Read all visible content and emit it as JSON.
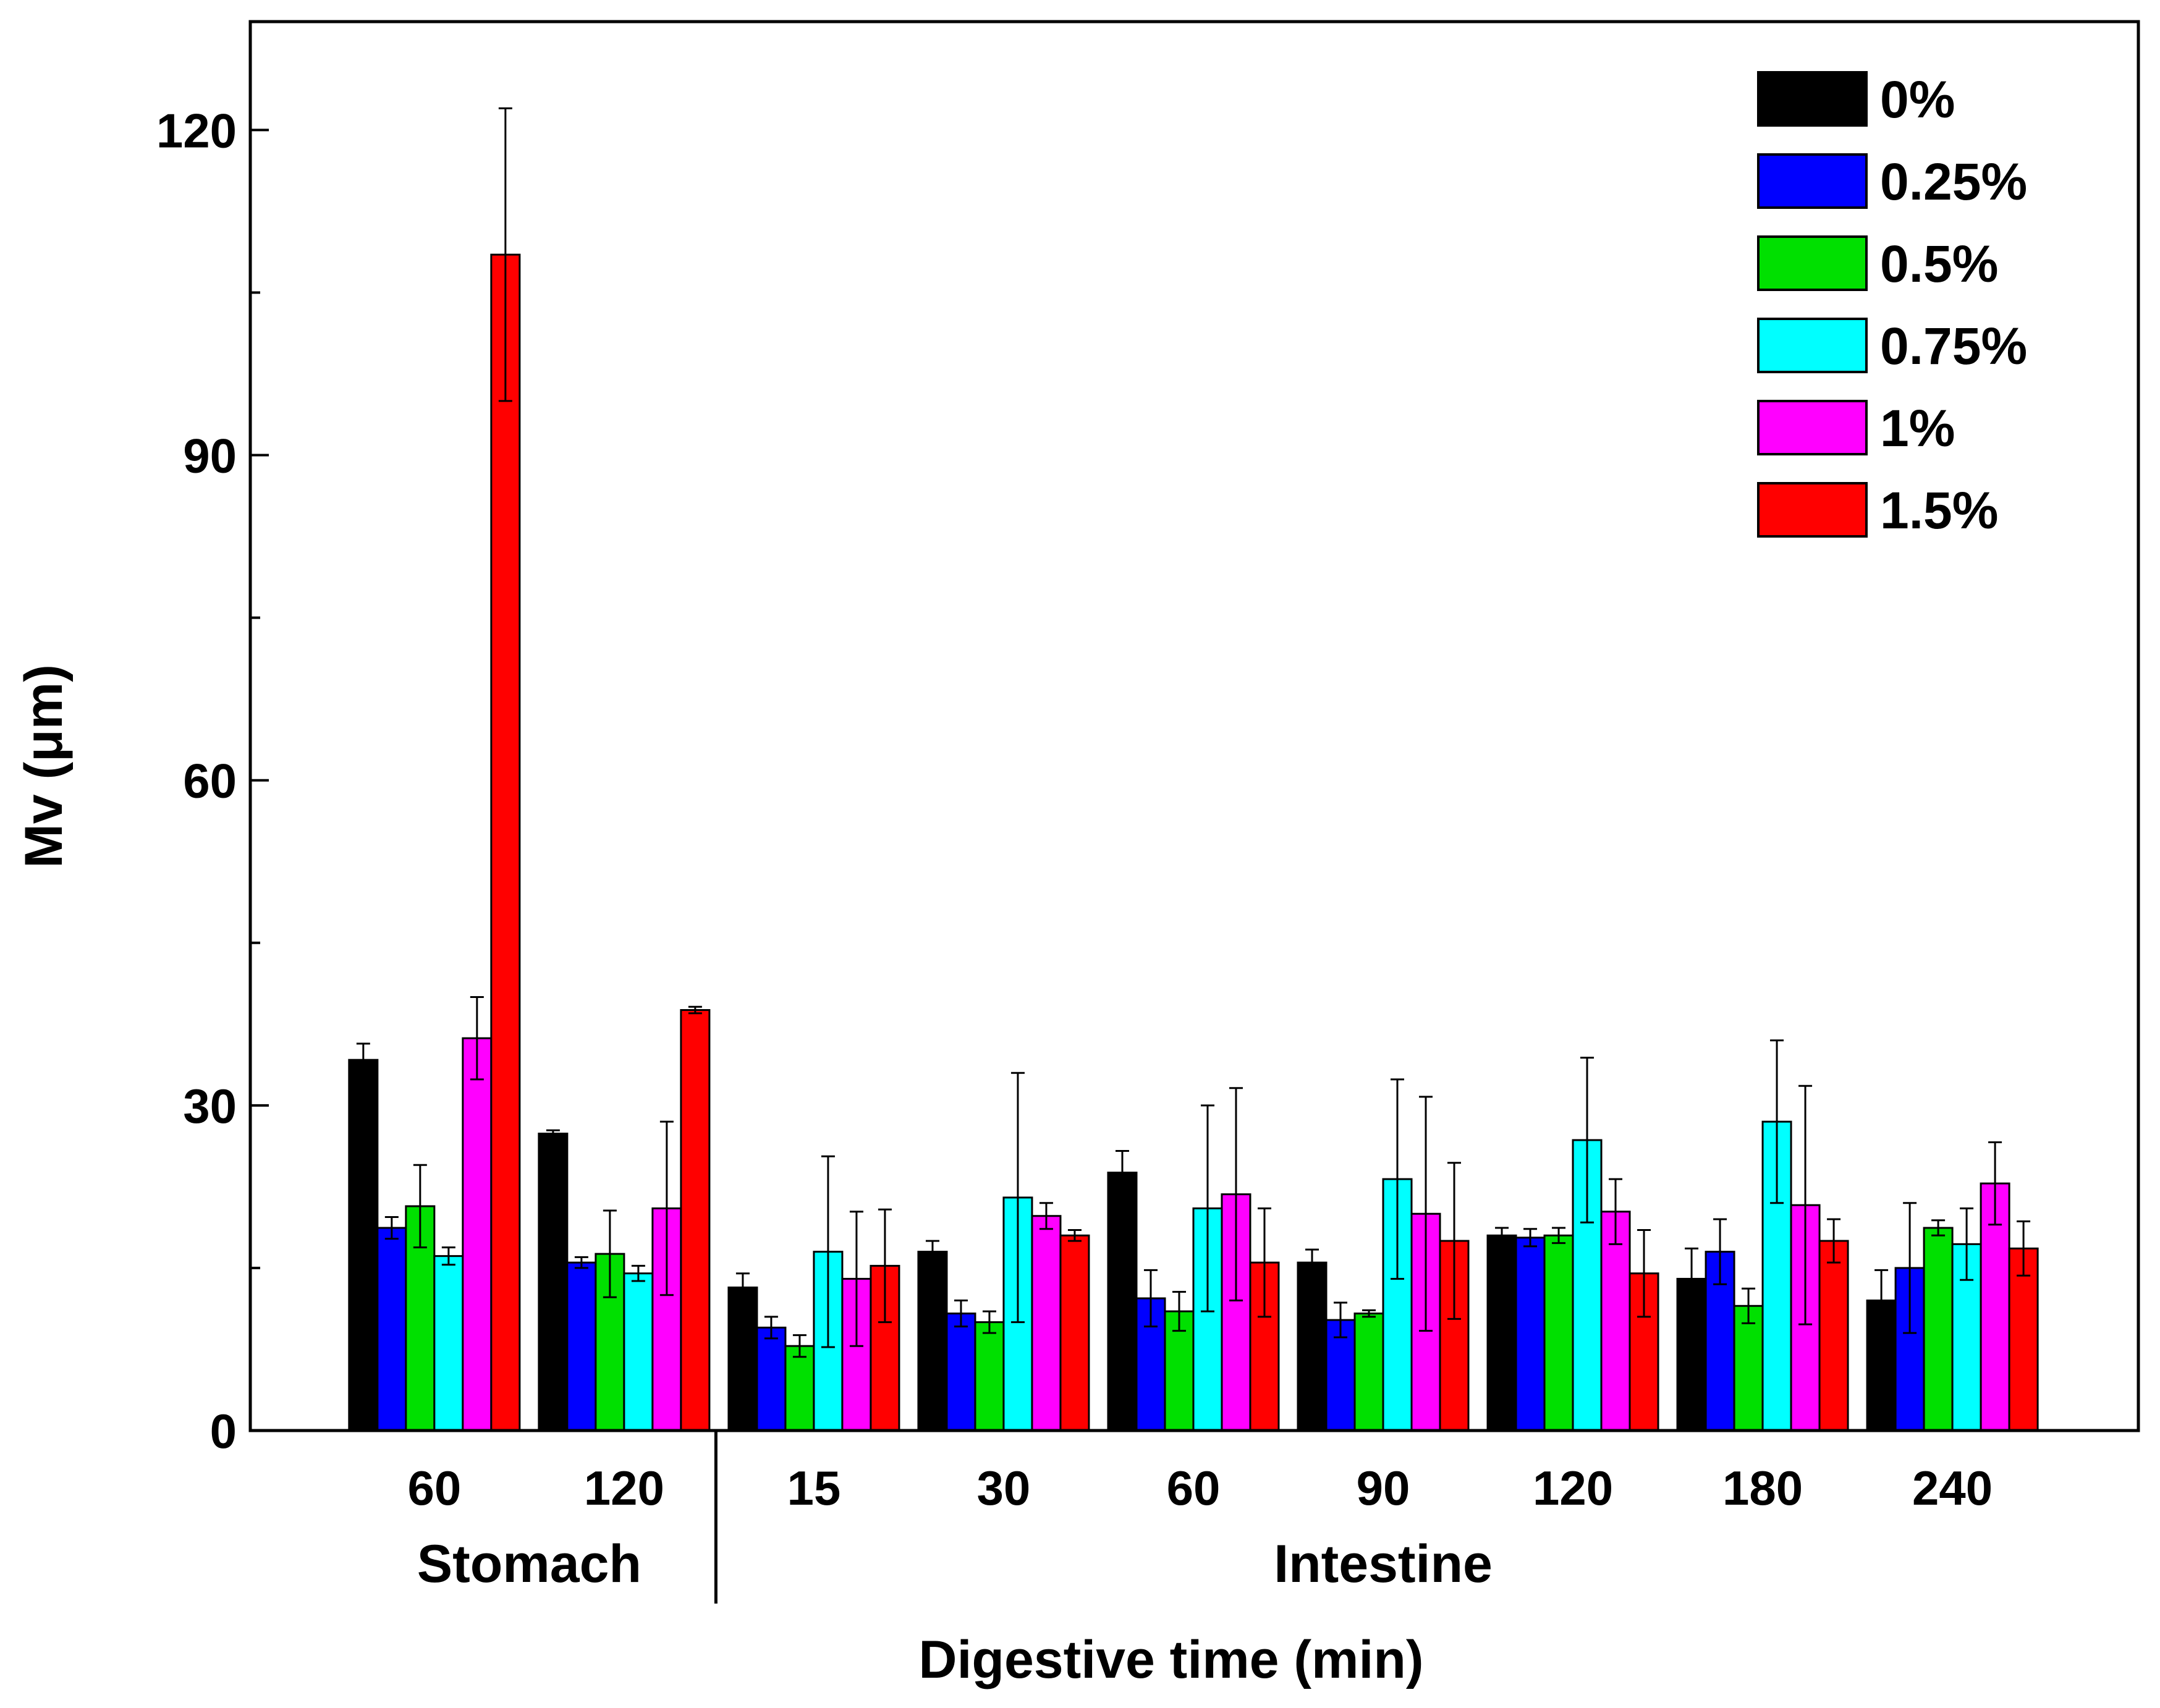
{
  "chart_data": {
    "type": "bar",
    "xlabel": "Digestive time (min)",
    "ylabel": "Mv (μm)",
    "ylim": [
      0,
      130
    ],
    "yticks": [
      0,
      30,
      60,
      90,
      120
    ],
    "legend_position": "top-right",
    "categories": [
      "60",
      "120",
      "15",
      "30",
      "60",
      "90",
      "120",
      "180",
      "240"
    ],
    "groups": [
      {
        "label": "Stomach",
        "categories": [
          0,
          1
        ]
      },
      {
        "label": "Intestine",
        "categories": [
          2,
          3,
          4,
          5,
          6,
          7,
          8
        ]
      }
    ],
    "series": [
      {
        "name": "0%",
        "color": "#000000",
        "values": [
          34.2,
          27.4,
          13.2,
          16.5,
          23.8,
          15.5,
          18.0,
          14.0,
          12.0
        ],
        "errors": [
          1.5,
          0.3,
          1.3,
          1.0,
          2.0,
          1.2,
          0.7,
          2.8,
          2.8
        ]
      },
      {
        "name": "0.25%",
        "color": "#0000ff",
        "values": [
          18.7,
          15.5,
          9.5,
          10.8,
          12.2,
          10.2,
          17.8,
          16.5,
          15.0
        ],
        "errors": [
          1.0,
          0.5,
          1.0,
          1.2,
          2.6,
          1.6,
          0.8,
          3.0,
          6.0
        ]
      },
      {
        "name": "0.5%",
        "color": "#00e000",
        "values": [
          20.7,
          16.3,
          7.8,
          10.0,
          11.0,
          10.8,
          18.0,
          11.5,
          18.7
        ],
        "errors": [
          3.8,
          4.0,
          1.0,
          1.0,
          1.8,
          0.3,
          0.7,
          1.6,
          0.7
        ]
      },
      {
        "name": "0.75%",
        "color": "#00ffff",
        "values": [
          16.1,
          14.5,
          16.5,
          21.5,
          20.5,
          23.2,
          26.8,
          28.5,
          17.2
        ],
        "errors": [
          0.8,
          0.7,
          8.8,
          11.5,
          9.5,
          9.2,
          7.6,
          7.5,
          3.3
        ]
      },
      {
        "name": "1%",
        "color": "#ff00ff",
        "values": [
          36.2,
          20.5,
          14.0,
          19.8,
          21.8,
          20.0,
          20.2,
          20.8,
          22.8
        ],
        "errors": [
          3.8,
          8.0,
          6.2,
          1.2,
          9.8,
          10.8,
          3.0,
          11.0,
          3.8
        ]
      },
      {
        "name": "1.5%",
        "color": "#ff0000",
        "values": [
          108.5,
          38.8,
          15.2,
          18.0,
          15.5,
          17.5,
          14.5,
          17.5,
          16.8
        ],
        "errors": [
          13.5,
          0.3,
          5.2,
          0.5,
          5.0,
          7.2,
          4.0,
          2.0,
          2.5
        ]
      }
    ]
  }
}
